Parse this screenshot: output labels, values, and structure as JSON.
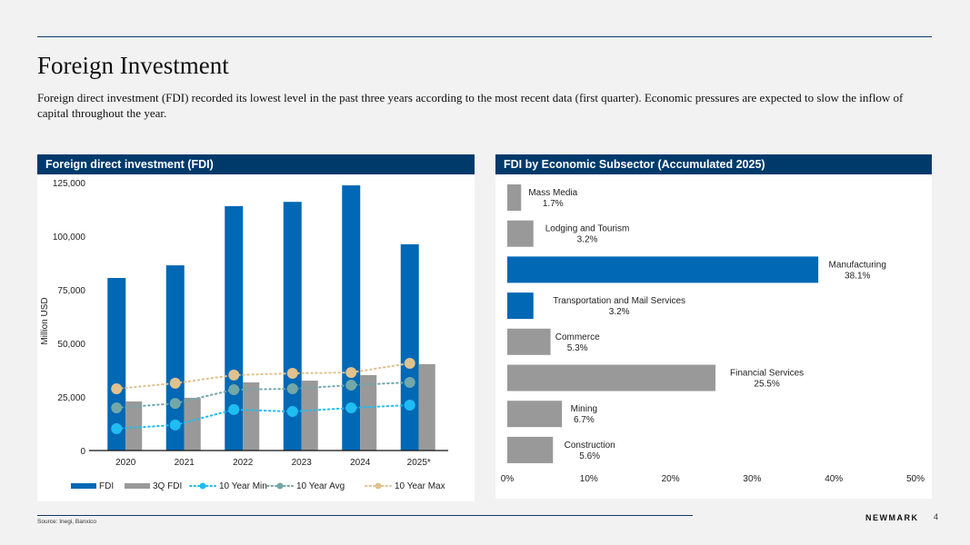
{
  "page": {
    "title": "Foreign Investment",
    "intro": "Foreign direct investment (FDI) recorded its lowest level in the past three years according to the most recent data (first quarter). Economic pressures are expected to slow the inflow of capital throughout the year.",
    "source": "Source: Inegi, Banxico",
    "brand": "NEWMARK",
    "page_number": "4"
  },
  "colors": {
    "header_bg": "#003a6b",
    "fdi": "#0068b4",
    "q3_fdi": "#999999",
    "min": "#1fbdf2",
    "avg": "#73a7a8",
    "max": "#e0c28f"
  },
  "chart_data": [
    {
      "type": "bar",
      "title": "Foreign direct investment (FDI)",
      "xlabel": "",
      "ylabel": "Million USD",
      "ylim": [
        0,
        125000
      ],
      "yticks": [
        0,
        25000,
        50000,
        75000,
        100000,
        125000
      ],
      "ytick_labels": [
        "0",
        "25,000",
        "50,000",
        "75,000",
        "100,000",
        "125,000"
      ],
      "categories": [
        "2020",
        "2021",
        "2022",
        "2023",
        "2024",
        "2025*"
      ],
      "grid": false,
      "legend_position": "bottom",
      "series": [
        {
          "name": "FDI",
          "kind": "bar",
          "values": [
            80500,
            86400,
            114000,
            116000,
            123700,
            96200
          ]
        },
        {
          "name": "3Q FDI",
          "kind": "bar",
          "values": [
            22900,
            24600,
            31800,
            32600,
            35200,
            40300
          ]
        },
        {
          "name": "10 Year Min",
          "kind": "line-dotted-marker",
          "values": [
            10200,
            11900,
            19100,
            18200,
            19900,
            21200
          ]
        },
        {
          "name": "10 Year Avg",
          "kind": "line-dotted-marker",
          "values": [
            19900,
            22000,
            28400,
            28800,
            30500,
            31800
          ]
        },
        {
          "name": "10 Year Max",
          "kind": "line-dotted-marker",
          "values": [
            28800,
            31400,
            35200,
            36000,
            36400,
            40700
          ]
        }
      ]
    },
    {
      "type": "bar",
      "orientation": "horizontal",
      "title": "FDI by Economic Subsector (Accumulated 2025)",
      "xlabel": "",
      "ylabel": "",
      "xlim": [
        0,
        50
      ],
      "xticks": [
        0,
        10,
        20,
        30,
        40,
        50
      ],
      "xtick_labels": [
        "0%",
        "10%",
        "20%",
        "30%",
        "40%",
        "50%"
      ],
      "grid": false,
      "categories": [
        "Mass Media",
        "Lodging and Tourism",
        "Manufacturing",
        "Transportation and Mail Services",
        "Commerce",
        "Financial Services",
        "Mining",
        "Construction"
      ],
      "values": [
        1.7,
        3.2,
        38.1,
        3.2,
        5.3,
        25.5,
        6.7,
        5.6
      ],
      "value_labels": [
        "1.7%",
        "3.2%",
        "38.1%",
        "3.2%",
        "5.3%",
        "25.5%",
        "6.7%",
        "5.6%"
      ],
      "highlight": [
        false,
        false,
        true,
        true,
        false,
        false,
        false,
        false
      ]
    }
  ]
}
